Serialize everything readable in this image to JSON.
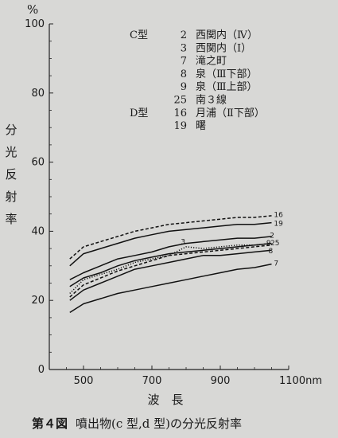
{
  "caption": {
    "figure_number": "第４図",
    "text": "噴出物(c 型,d 型)の分光反射率"
  },
  "chart_data": {
    "type": "line",
    "title": "",
    "xlabel": "波　長",
    "ylabel": "分光反射率",
    "y_unit": "%",
    "x_unit": "nm",
    "xlim": [
      400,
      1100
    ],
    "ylim": [
      0,
      100
    ],
    "x_ticks": [
      {
        "value": 500,
        "label": "500"
      },
      {
        "value": 700,
        "label": "700"
      },
      {
        "value": 900,
        "label": "900"
      },
      {
        "value": 1100,
        "label": "1100nm"
      }
    ],
    "y_ticks": [
      {
        "value": 0,
        "label": "0"
      },
      {
        "value": 20,
        "label": "20"
      },
      {
        "value": 40,
        "label": "40"
      },
      {
        "value": 60,
        "label": "60"
      },
      {
        "value": 80,
        "label": "80"
      },
      {
        "value": 100,
        "label": "100"
      }
    ],
    "legend": [
      {
        "type_label": "C型",
        "number": "2",
        "place": "西関内（Ⅳ）"
      },
      {
        "type_label": "",
        "number": "3",
        "place": "西関内（Ⅰ）"
      },
      {
        "type_label": "",
        "number": "7",
        "place": "滝之町"
      },
      {
        "type_label": "",
        "number": "8",
        "place": "泉（Ⅲ下部）"
      },
      {
        "type_label": "",
        "number": "9",
        "place": "泉（Ⅲ上部）"
      },
      {
        "type_label": "",
        "number": "25",
        "place": "南３線"
      },
      {
        "type_label": "D型",
        "number": "16",
        "place": "月浦（Ⅱ下部）"
      },
      {
        "type_label": "",
        "number": "19",
        "place": "曙"
      }
    ],
    "legend_position": "top-right",
    "grid": false,
    "series": [
      {
        "name": "16",
        "style": "dashed",
        "x": [
          460,
          500,
          550,
          600,
          650,
          700,
          750,
          800,
          850,
          900,
          950,
          1000,
          1050
        ],
        "y": [
          32,
          35.5,
          37,
          38.5,
          40,
          41,
          42,
          42.5,
          43,
          43.5,
          44,
          44,
          44.5
        ]
      },
      {
        "name": "19",
        "style": "solid",
        "x": [
          460,
          500,
          550,
          600,
          650,
          700,
          750,
          800,
          850,
          900,
          950,
          1000,
          1050
        ],
        "y": [
          30,
          33.5,
          35,
          36.5,
          38,
          39,
          40,
          40.5,
          41,
          41.5,
          42,
          42,
          42.5
        ]
      },
      {
        "name": "2",
        "style": "solid",
        "x": [
          460,
          500,
          550,
          600,
          650,
          700,
          750,
          800,
          850,
          900,
          950,
          1000,
          1050
        ],
        "y": [
          26,
          28,
          30,
          32,
          33,
          34,
          35.5,
          36.5,
          37,
          37.5,
          38,
          38,
          38.5
        ]
      },
      {
        "name": "3",
        "style": "dotted",
        "x": [
          460,
          500,
          550,
          600,
          650,
          700,
          750,
          800,
          850,
          900,
          950,
          1000,
          1050
        ],
        "y": [
          22,
          26,
          27.5,
          29,
          31,
          32,
          33,
          35.5,
          35,
          35.5,
          36,
          36,
          36.5
        ]
      },
      {
        "name": "9",
        "style": "solid",
        "x": [
          460,
          500,
          550,
          600,
          650,
          700,
          750,
          800,
          850,
          900,
          950,
          1000,
          1050
        ],
        "y": [
          24,
          26.5,
          28,
          30,
          31.5,
          32.5,
          33.5,
          34,
          34.5,
          35,
          35.5,
          36,
          36.5
        ]
      },
      {
        "name": "25",
        "style": "dashed",
        "x": [
          460,
          500,
          550,
          600,
          650,
          700,
          750,
          800,
          850,
          900,
          950,
          1000,
          1050
        ],
        "y": [
          21,
          24.5,
          26.5,
          28.5,
          30,
          31.5,
          33,
          33.5,
          34,
          34.5,
          35,
          35.5,
          36
        ]
      },
      {
        "name": "8",
        "style": "solid",
        "x": [
          460,
          500,
          550,
          600,
          650,
          700,
          750,
          800,
          850,
          900,
          950,
          1000,
          1050
        ],
        "y": [
          20,
          23,
          25,
          27,
          29,
          30,
          31,
          32,
          33,
          33,
          33.5,
          34,
          34.5
        ]
      },
      {
        "name": "7",
        "style": "solid",
        "x": [
          460,
          500,
          550,
          600,
          650,
          700,
          750,
          800,
          850,
          900,
          950,
          1000,
          1050
        ],
        "y": [
          16.5,
          19,
          20.5,
          22,
          23,
          24,
          25,
          26,
          27,
          28,
          29,
          29.5,
          30.5
        ]
      }
    ]
  }
}
